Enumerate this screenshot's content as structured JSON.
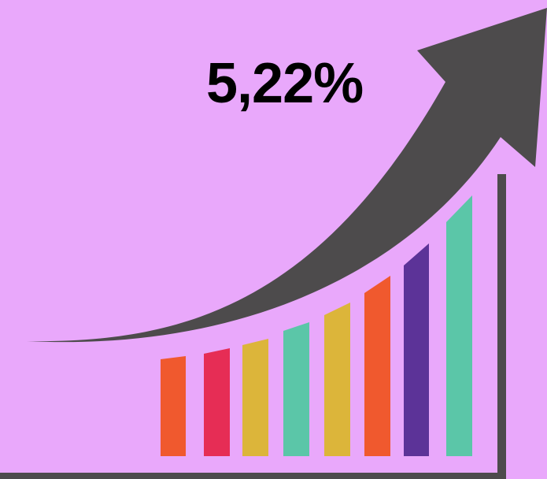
{
  "headline": {
    "value_text": "5,22%"
  },
  "colors": {
    "background": "#e9a8fb",
    "arrow": "#4d4b4c",
    "axis": "#4d4b4c",
    "bars": [
      "#f0592e",
      "#e62d55",
      "#dcb53a",
      "#5bc6a8",
      "#dcb53a",
      "#f0592e",
      "#5c3398",
      "#5bc6a8"
    ]
  },
  "icons": {
    "arrow": "up-trend-arrow-icon"
  }
}
